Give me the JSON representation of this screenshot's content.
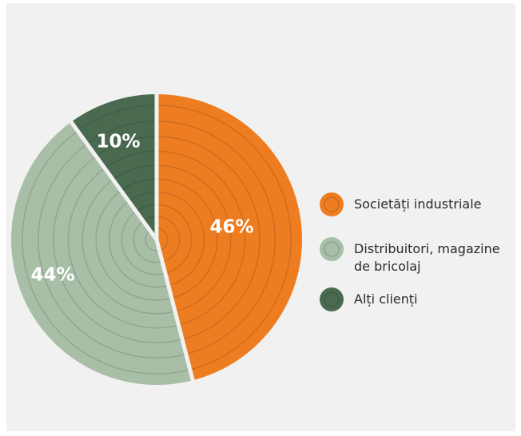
{
  "chart_data": {
    "type": "pie",
    "categories": [
      "Societăți industriale",
      "Distribuitori, magazine de bricolaj",
      "Alți clienți"
    ],
    "values": [
      46,
      44,
      10
    ],
    "value_labels": [
      "46%",
      "44%",
      "10%"
    ],
    "colors": [
      "#ee7d22",
      "#a8bea6",
      "#4a6a50"
    ],
    "legend": "right"
  }
}
